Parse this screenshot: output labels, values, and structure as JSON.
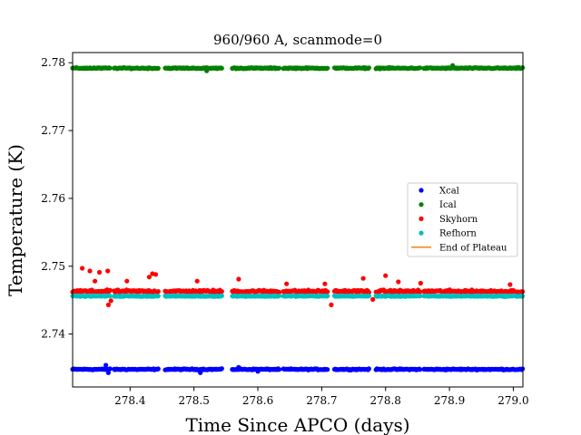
{
  "chart_data": {
    "type": "scatter",
    "title": "960/960 A, scanmode=0",
    "xlabel": "Time Since APCO (days)",
    "ylabel": "Temperature (K)",
    "xlim": [
      278.31,
      279.015
    ],
    "ylim": [
      2.7322,
      2.7815
    ],
    "xticks": [
      278.4,
      278.5,
      278.6,
      278.7,
      278.8,
      278.9,
      279.0
    ],
    "xtick_labels": [
      "278.4",
      "278.5",
      "278.6",
      "278.7",
      "278.8",
      "278.9",
      "279.0"
    ],
    "yticks": [
      2.74,
      2.75,
      2.76,
      2.77,
      2.78
    ],
    "ytick_labels": [
      "2.74",
      "2.75",
      "2.76",
      "2.77",
      "2.78"
    ],
    "grid": false,
    "legend_position": "center-right",
    "segments": [
      [
        278.31,
        278.37
      ],
      [
        278.375,
        278.445
      ],
      [
        278.455,
        278.545
      ],
      [
        278.56,
        278.635
      ],
      [
        278.64,
        278.71
      ],
      [
        278.72,
        278.775
      ],
      [
        278.785,
        278.855
      ],
      [
        278.86,
        279.015
      ]
    ],
    "series": [
      {
        "name": "Xcal",
        "kind": "points",
        "color": "#0000ff",
        "center": 2.7348,
        "spread": 0.00012,
        "spikes": [
          [
            278.362,
            2.7354
          ],
          [
            278.366,
            2.7343
          ],
          [
            278.51,
            2.7343
          ],
          [
            278.57,
            2.7351
          ],
          [
            278.6,
            2.7345
          ]
        ]
      },
      {
        "name": "Ical",
        "kind": "points",
        "color": "#008000",
        "center": 2.7792,
        "spread": 0.00012,
        "spikes": [
          [
            278.905,
            2.7796
          ],
          [
            278.52,
            2.7788
          ]
        ]
      },
      {
        "name": "Skyhorn",
        "kind": "points",
        "color": "#ff0000",
        "center": 2.7463,
        "spread": 0.00028,
        "spikes": [
          [
            278.325,
            2.7497
          ],
          [
            278.337,
            2.7493
          ],
          [
            278.345,
            2.7478
          ],
          [
            278.352,
            2.7491
          ],
          [
            278.365,
            2.7493
          ],
          [
            278.366,
            2.7443
          ],
          [
            278.37,
            2.7449
          ],
          [
            278.395,
            2.7478
          ],
          [
            278.43,
            2.7484
          ],
          [
            278.435,
            2.7489
          ],
          [
            278.44,
            2.7488
          ],
          [
            278.505,
            2.7478
          ],
          [
            278.57,
            2.7481
          ],
          [
            278.645,
            2.7474
          ],
          [
            278.705,
            2.7474
          ],
          [
            278.715,
            2.7443
          ],
          [
            278.765,
            2.7482
          ],
          [
            278.78,
            2.7451
          ],
          [
            278.8,
            2.7486
          ],
          [
            278.82,
            2.7477
          ],
          [
            278.855,
            2.7475
          ],
          [
            278.995,
            2.7473
          ]
        ]
      },
      {
        "name": "Refhorn",
        "kind": "points",
        "color": "#00bfbf",
        "center": 2.7456,
        "spread": 0.0001,
        "spikes": []
      },
      {
        "name": "End of Plateau",
        "kind": "line",
        "color": "#ff7f0e",
        "values": []
      }
    ]
  }
}
